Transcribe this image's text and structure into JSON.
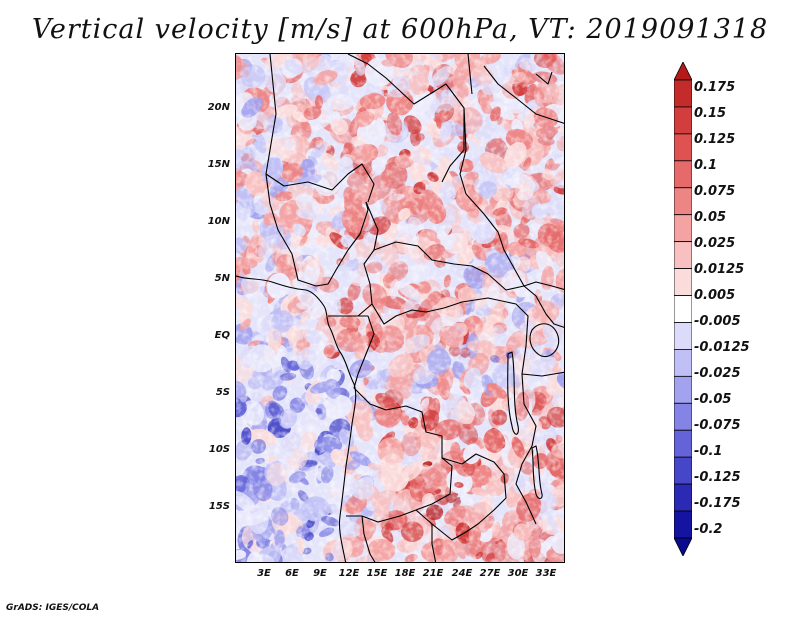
{
  "title": "Vertical velocity [m/s] at 600hPa, VT: 2019091318",
  "footer": "GrADS: IGES/COLA",
  "latitude_labels": [
    "20N",
    "15N",
    "10N",
    "5N",
    "EQ",
    "5S",
    "10S",
    "15S"
  ],
  "longitude_labels": [
    "3E",
    "6E",
    "9E",
    "12E",
    "15E",
    "18E",
    "21E",
    "24E",
    "27E",
    "30E",
    "33E"
  ],
  "colorbar": {
    "labels": [
      "0.175",
      "0.15",
      "0.125",
      "0.1",
      "0.075",
      "0.05",
      "0.025",
      "0.0125",
      "0.005",
      "-0.005",
      "-0.0125",
      "-0.025",
      "-0.05",
      "-0.075",
      "-0.1",
      "-0.125",
      "-0.175",
      "-0.2"
    ],
    "colors": [
      "#b41a1a",
      "#c42b2b",
      "#d23d3d",
      "#de5252",
      "#e66a6a",
      "#ee8585",
      "#f4a2a2",
      "#f8c0c0",
      "#fbdcdc",
      "#ffffff",
      "#dcdcfa",
      "#c0c0f6",
      "#a2a2ef",
      "#8484e6",
      "#6464d8",
      "#4646c8",
      "#2a2ab4",
      "#1414a0",
      "#0a0a8c"
    ]
  },
  "map_colors": {
    "land_border": "#000000",
    "positive_strong": "#c42b2b",
    "positive_light": "#f4a2a2",
    "negative_strong": "#4646c8",
    "negative_light": "#c0c0f6"
  }
}
